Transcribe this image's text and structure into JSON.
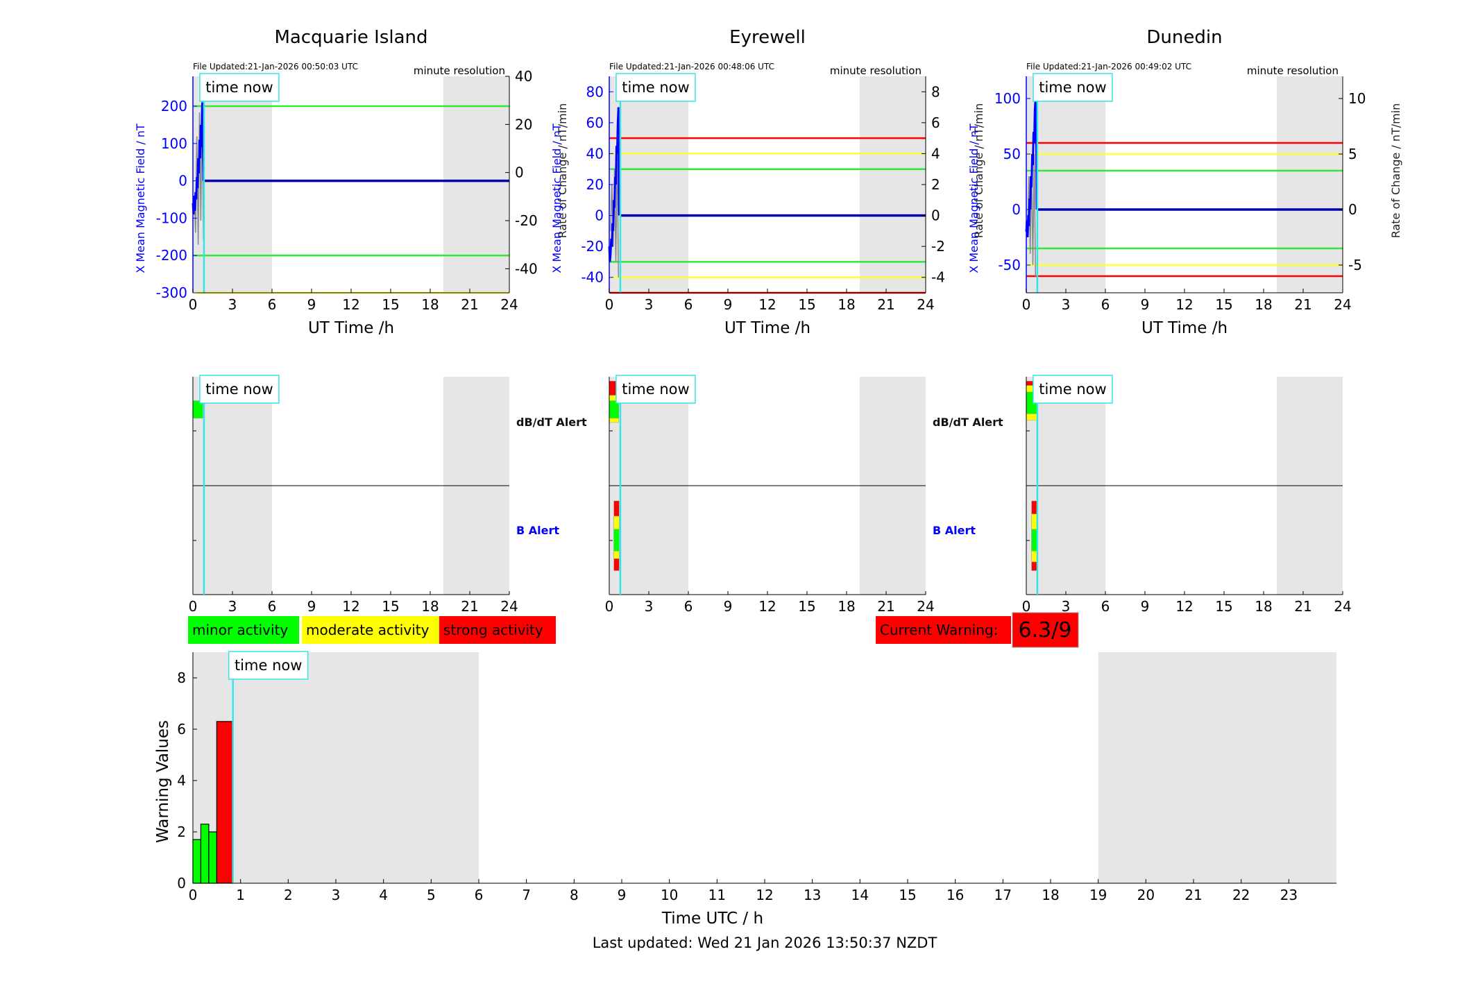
{
  "stations": [
    {
      "name": "Macquarie Island",
      "file_updated": "File Updated:21-Jan-2026 00:50:03 UTC",
      "resolution": "minute resolution",
      "left_ylabel": "X Mean Magnetic Field / nT",
      "right_ylabel": "Rate of Change / nT/min",
      "left_ylim": [
        -300,
        280
      ],
      "left_ticks": [
        -300,
        -200,
        -100,
        0,
        100,
        200
      ],
      "right_ylim": [
        -50,
        40
      ],
      "right_ticks": [
        -40,
        -20,
        0,
        20,
        40
      ],
      "thresholds": [
        {
          "value": 200,
          "color": "#33e833"
        },
        {
          "value": -200,
          "color": "#33e833"
        },
        {
          "value": -300,
          "color": "#ffff33"
        }
      ],
      "field_trace": {
        "t": [
          0.0,
          0.05,
          0.1,
          0.15,
          0.2,
          0.25,
          0.3,
          0.35,
          0.4,
          0.45,
          0.5,
          0.55,
          0.6,
          0.65,
          0.7,
          0.72,
          0.75,
          0.8
        ],
        "x": [
          -60,
          -90,
          -40,
          -80,
          -30,
          -50,
          10,
          -20,
          60,
          20,
          110,
          60,
          150,
          90,
          200,
          210,
          150,
          0
        ]
      },
      "rate_trace": {
        "t": [
          0.1,
          0.2,
          0.3,
          0.4,
          0.5,
          0.6,
          0.7,
          0.8
        ],
        "r": [
          -10,
          -25,
          15,
          -30,
          25,
          -20,
          30,
          -28
        ]
      },
      "after_value": 0,
      "dbdt_alerts": [
        {
          "t0": 0.0,
          "t1": 0.75,
          "level": "minor"
        }
      ],
      "b_alerts": []
    },
    {
      "name": "Eyrewell",
      "file_updated": "File Updated:21-Jan-2026 00:48:06 UTC",
      "resolution": "minute resolution",
      "left_ylabel": "X Mean Magnetic Field / nT",
      "right_ylabel": "Rate of Change / nT/min",
      "left_ylim": [
        -50,
        90
      ],
      "left_ticks": [
        -40,
        -20,
        0,
        20,
        40,
        60,
        80
      ],
      "right_ylim": [
        -5,
        9
      ],
      "right_ticks": [
        -4,
        -2,
        0,
        2,
        4,
        6,
        8
      ],
      "thresholds": [
        {
          "value": 50,
          "color": "#ff0000"
        },
        {
          "value": 40,
          "color": "#ffff33"
        },
        {
          "value": 30,
          "color": "#33e833"
        },
        {
          "value": -30,
          "color": "#33e833"
        },
        {
          "value": -40,
          "color": "#ffff33"
        },
        {
          "value": -50,
          "color": "#ff0000"
        }
      ],
      "field_trace": {
        "t": [
          0.0,
          0.05,
          0.1,
          0.15,
          0.2,
          0.25,
          0.3,
          0.35,
          0.4,
          0.45,
          0.5,
          0.55,
          0.6,
          0.65,
          0.7,
          0.75
        ],
        "x": [
          -20,
          -30,
          -25,
          -15,
          -20,
          -5,
          -10,
          10,
          5,
          25,
          20,
          45,
          40,
          60,
          70,
          0
        ]
      },
      "rate_trace": {
        "t": [
          0.1,
          0.2,
          0.3,
          0.4,
          0.5,
          0.6,
          0.7
        ],
        "r": [
          -1,
          2,
          -2,
          3,
          -3,
          4,
          -4
        ]
      },
      "after_value": 0,
      "dbdt_alerts": [
        {
          "t0": 0.0,
          "t1": 0.72,
          "level": "strong",
          "band": [
            0.68,
            0.96
          ]
        },
        {
          "t0": 0.0,
          "t1": 0.72,
          "level": "moderate",
          "band": [
            0.58,
            0.83
          ]
        },
        {
          "t0": 0.0,
          "t1": 0.72,
          "level": "minor",
          "band": [
            0.62,
            0.78
          ]
        }
      ],
      "b_alerts": [
        {
          "t0": 0.35,
          "t1": 0.75,
          "level": "strong",
          "band": [
            0.22,
            0.86
          ]
        },
        {
          "t0": 0.35,
          "t1": 0.75,
          "level": "moderate",
          "band": [
            0.33,
            0.72
          ]
        },
        {
          "t0": 0.35,
          "t1": 0.75,
          "level": "minor",
          "band": [
            0.4,
            0.6
          ]
        }
      ]
    },
    {
      "name": "Dunedin",
      "file_updated": "File Updated:21-Jan-2026 00:49:02 UTC",
      "resolution": "minute resolution",
      "left_ylabel": "X Mean Magnetic Field / nT",
      "right_ylabel": "Rate of Change / nT/min",
      "left_ylim": [
        -75,
        120
      ],
      "left_ticks": [
        -50,
        0,
        50,
        100
      ],
      "right_ylim": [
        -7.5,
        12
      ],
      "right_ticks": [
        -5,
        0,
        5,
        10
      ],
      "thresholds": [
        {
          "value": 60,
          "color": "#ff0000"
        },
        {
          "value": 50,
          "color": "#ffff33"
        },
        {
          "value": 35,
          "color": "#33e833"
        },
        {
          "value": -35,
          "color": "#33e833"
        },
        {
          "value": -50,
          "color": "#ffff33"
        },
        {
          "value": -60,
          "color": "#ff0000"
        }
      ],
      "field_trace": {
        "t": [
          0.0,
          0.05,
          0.1,
          0.15,
          0.2,
          0.25,
          0.3,
          0.35,
          0.4,
          0.45,
          0.5,
          0.55,
          0.6,
          0.65,
          0.7,
          0.75,
          0.8
        ],
        "x": [
          -20,
          -10,
          -25,
          -5,
          -15,
          10,
          0,
          30,
          20,
          50,
          40,
          70,
          60,
          90,
          100,
          80,
          0
        ]
      },
      "rate_trace": {
        "t": [
          0.1,
          0.2,
          0.3,
          0.4,
          0.5,
          0.6,
          0.7
        ],
        "r": [
          -2,
          3,
          -4,
          4,
          -5,
          5,
          -6
        ]
      },
      "after_value": 0,
      "dbdt_alerts": [
        {
          "t0": 0.0,
          "t1": 0.85,
          "level": "strong",
          "band": [
            0.66,
            0.96
          ]
        },
        {
          "t0": 0.0,
          "t1": 0.85,
          "level": "moderate",
          "band": [
            0.6,
            0.92
          ]
        },
        {
          "t0": 0.0,
          "t1": 0.85,
          "level": "minor",
          "band": [
            0.66,
            0.86
          ]
        }
      ],
      "b_alerts": [
        {
          "t0": 0.4,
          "t1": 0.8,
          "level": "strong",
          "band": [
            0.22,
            0.86
          ]
        },
        {
          "t0": 0.4,
          "t1": 0.8,
          "level": "moderate",
          "band": [
            0.3,
            0.74
          ]
        },
        {
          "t0": 0.4,
          "t1": 0.8,
          "level": "minor",
          "band": [
            0.4,
            0.6
          ]
        }
      ]
    }
  ],
  "top_xlabel": "UT Time /h",
  "hour_ticks": [
    0,
    3,
    6,
    9,
    12,
    15,
    18,
    21,
    24
  ],
  "shaded_hours": [
    [
      0,
      6
    ],
    [
      19,
      24
    ]
  ],
  "time_now_label": "time now",
  "time_now_h": 0.84,
  "alert_labels": {
    "dbdt": "dB/dT Alert",
    "b": "B Alert"
  },
  "legend": {
    "minor": "minor activity",
    "moderate": "moderate activity",
    "strong": "strong activity"
  },
  "colors": {
    "minor": "#00ff00",
    "moderate": "#ffff00",
    "strong": "#ff0000",
    "field": "#0000ff",
    "rate": "#888888",
    "now": "#33e6e6",
    "shade": "#e6e6e6"
  },
  "current_warning": {
    "label": "Current Warning:",
    "value": "6.3/9"
  },
  "chart_data": {
    "type": "bar",
    "x_hours": [
      0.0833,
      0.25,
      0.4167,
      0.6667
    ],
    "bar_widths_h": [
      0.1667,
      0.1667,
      0.1667,
      0.3333
    ],
    "values": [
      1.7,
      2.3,
      2.0,
      6.3
    ],
    "levels": [
      "minor",
      "minor",
      "minor",
      "strong"
    ],
    "ylabel": "Warning Values",
    "xlabel": "Time UTC / h",
    "ylim": [
      0,
      9
    ],
    "yticks": [
      0,
      2,
      4,
      6,
      8
    ],
    "xlim": [
      0,
      24
    ],
    "xticks": [
      0,
      1,
      2,
      3,
      4,
      5,
      6,
      7,
      8,
      9,
      10,
      11,
      12,
      13,
      14,
      15,
      16,
      17,
      18,
      19,
      20,
      21,
      22,
      23
    ],
    "shaded_hours": [
      [
        0,
        6
      ],
      [
        19,
        24
      ]
    ]
  },
  "footer": "Last updated: Wed 21 Jan 2026 13:50:37 NZDT"
}
